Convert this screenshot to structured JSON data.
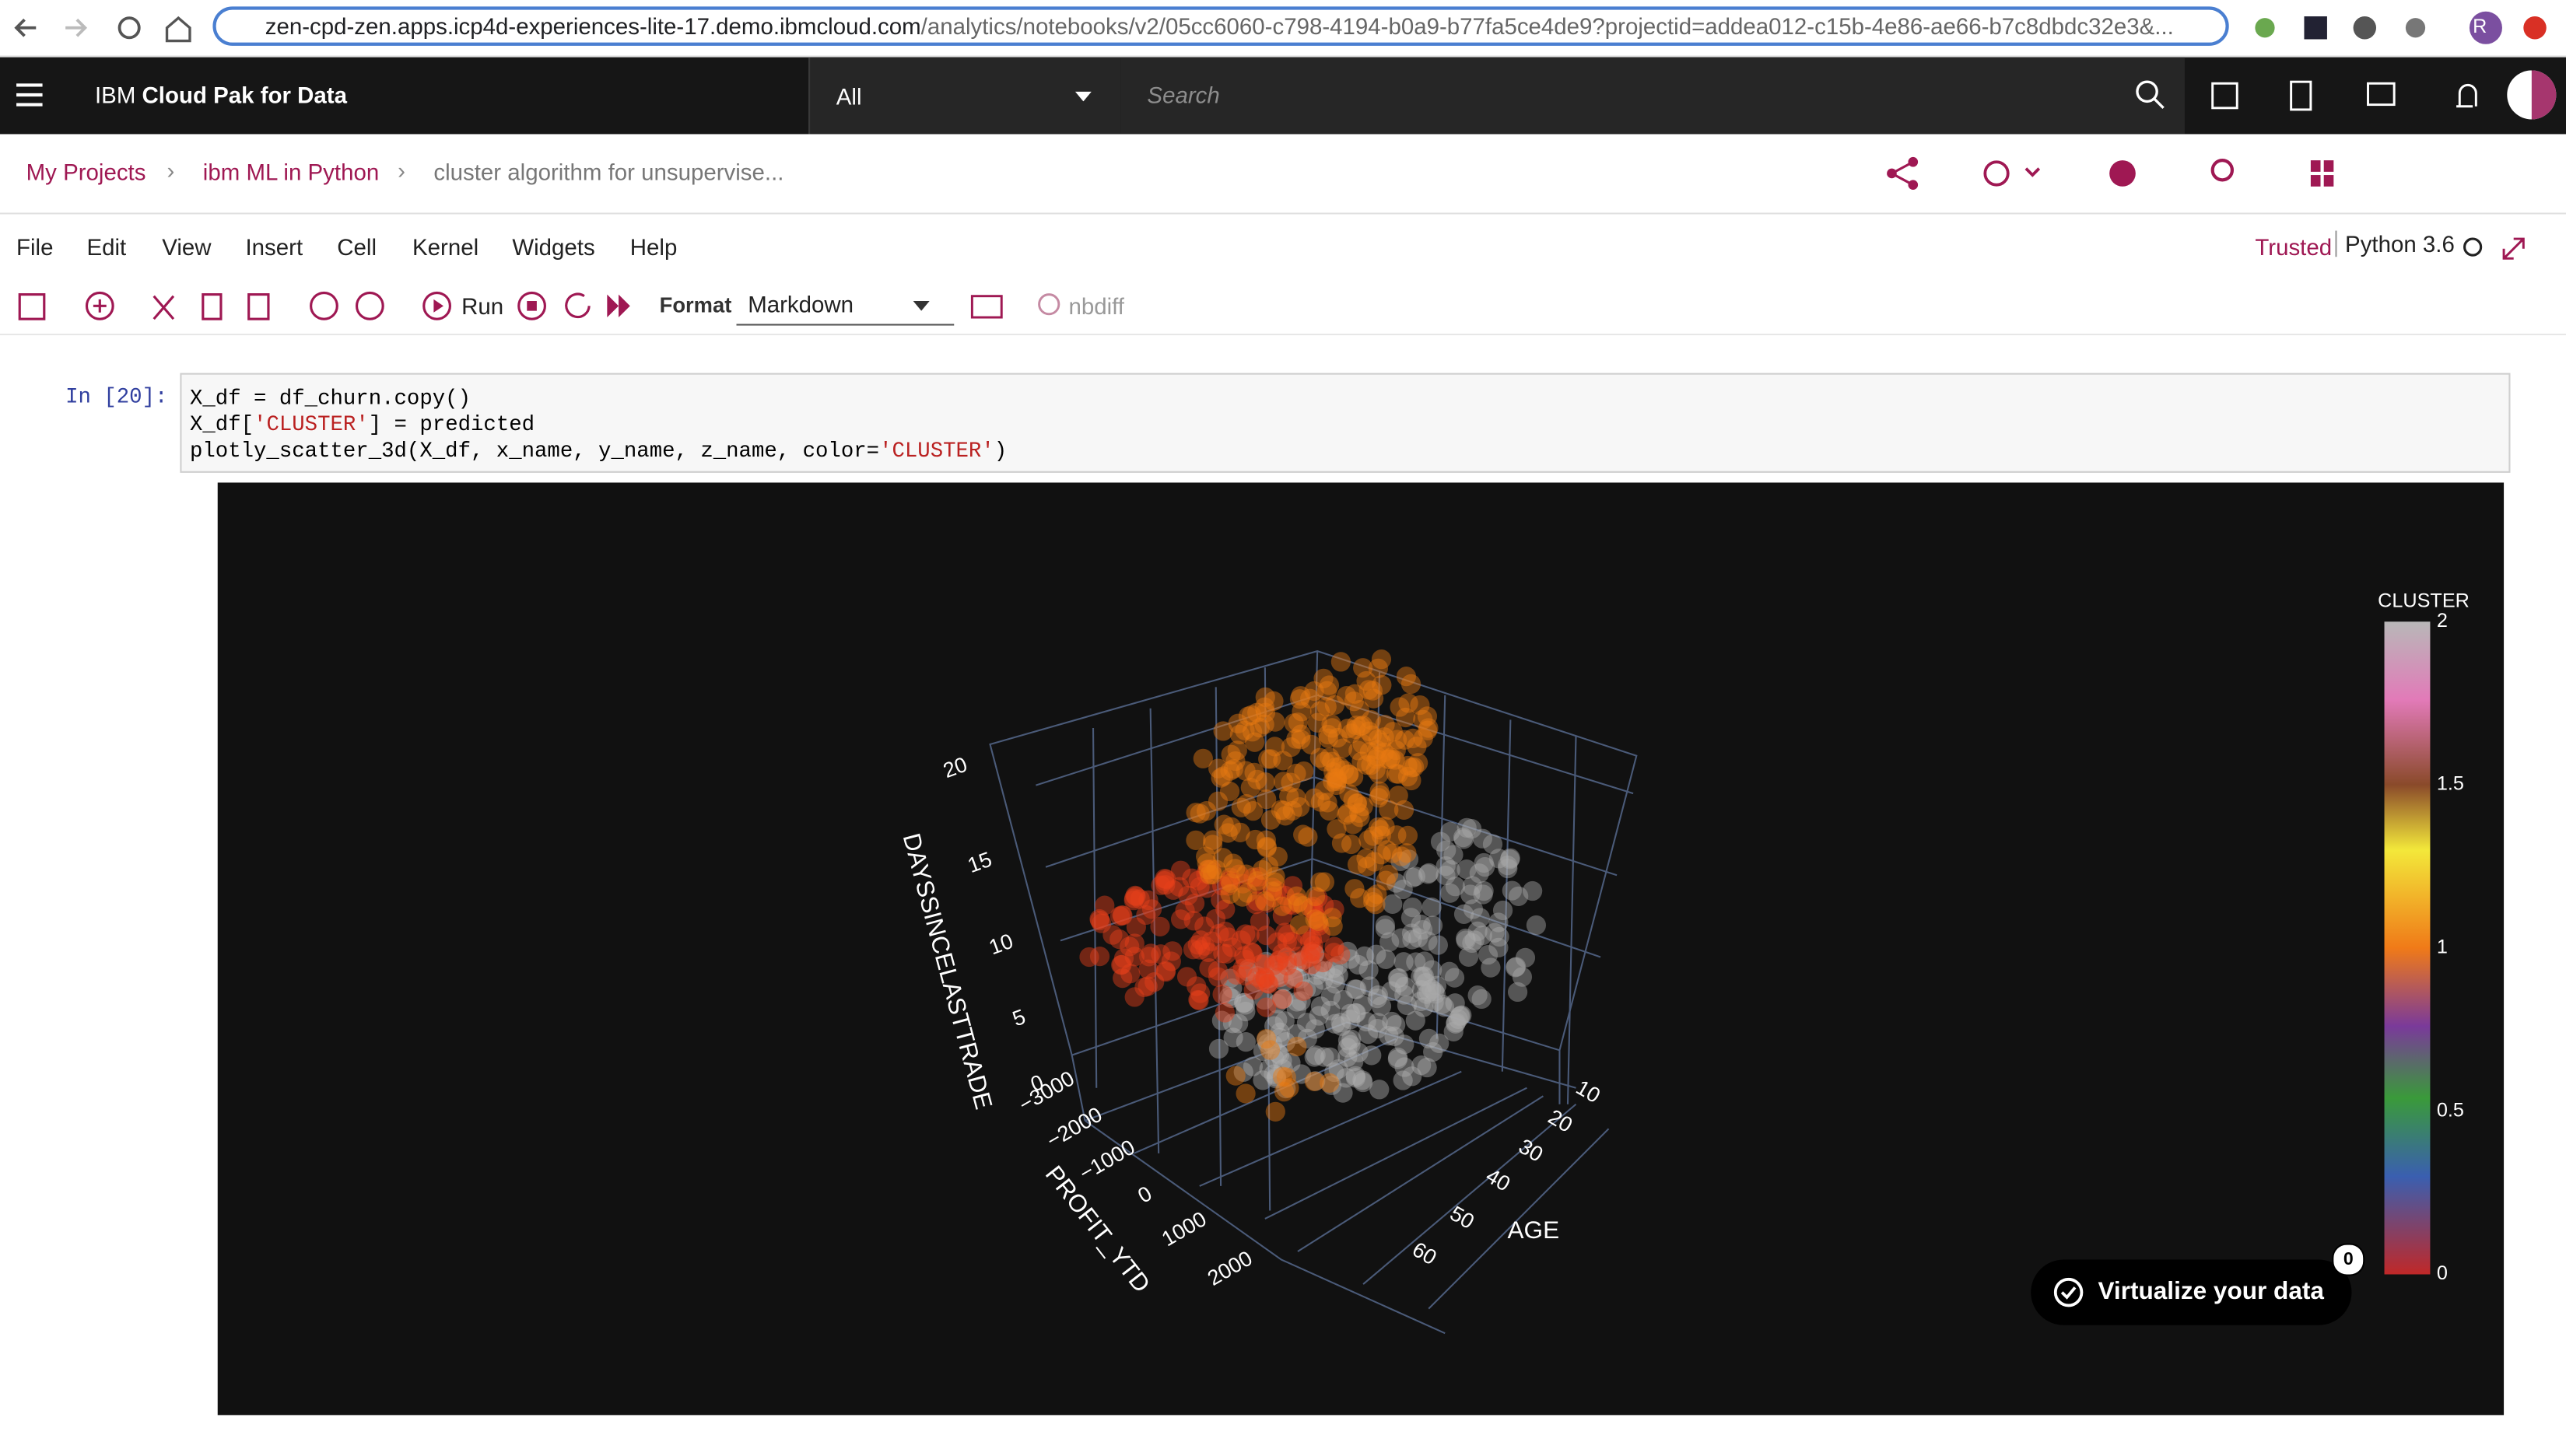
{
  "browser": {
    "host": "zen-cpd-zen.apps.icp4d-experiences-lite-17.demo.ibmcloud.com",
    "path": "/analytics/notebooks/v2/05cc6060-c798-4194-b0a9-b77fa5ce4de9?projectid=addea012-c15b-4e86-ae66-b7c8dbdc32e3&...",
    "avatar": "R"
  },
  "header": {
    "product_prefix": "IBM",
    "product": "Cloud Pak for Data",
    "scope": "All",
    "search_placeholder": "Search"
  },
  "breadcrumbs": [
    "My Projects",
    "ibm ML in Python",
    "cluster algorithm for unsupervise..."
  ],
  "menu": [
    "File",
    "Edit",
    "View",
    "Insert",
    "Cell",
    "Kernel",
    "Widgets",
    "Help"
  ],
  "kernel": {
    "trusted": "Trusted",
    "name": "Python 3.6"
  },
  "toolbar": {
    "run": "Run",
    "format_label": "Format",
    "format": "Markdown",
    "nbdiff": "nbdiff"
  },
  "cell": {
    "prompt": "In [20]:",
    "code": [
      [
        "X_df = df_churn.copy()"
      ],
      [
        "X_df[",
        "'CLUSTER'",
        "] = predicted"
      ],
      [
        "plotly_scatter_3d(X_df, x_name, y_name, z_name, color=",
        "'CLUSTER'",
        ")"
      ]
    ]
  },
  "plot": {
    "z_title": "DAYSSINCELASTTRADE",
    "x_title": "PROFIT_YTD",
    "y_title": "AGE",
    "z_ticks": [
      "0",
      "5",
      "10",
      "15",
      "20"
    ],
    "x_ticks": [
      "−3000",
      "−2000",
      "−1000",
      "0",
      "1000",
      "2000"
    ],
    "y_ticks": [
      "10",
      "20",
      "30",
      "40",
      "50",
      "60"
    ],
    "colorbar": {
      "title": "CLUSTER",
      "ticks": [
        "0",
        "0.5",
        "1",
        "1.5",
        "2"
      ]
    }
  },
  "badge": {
    "label": "Virtualize your data",
    "count": "0"
  }
}
